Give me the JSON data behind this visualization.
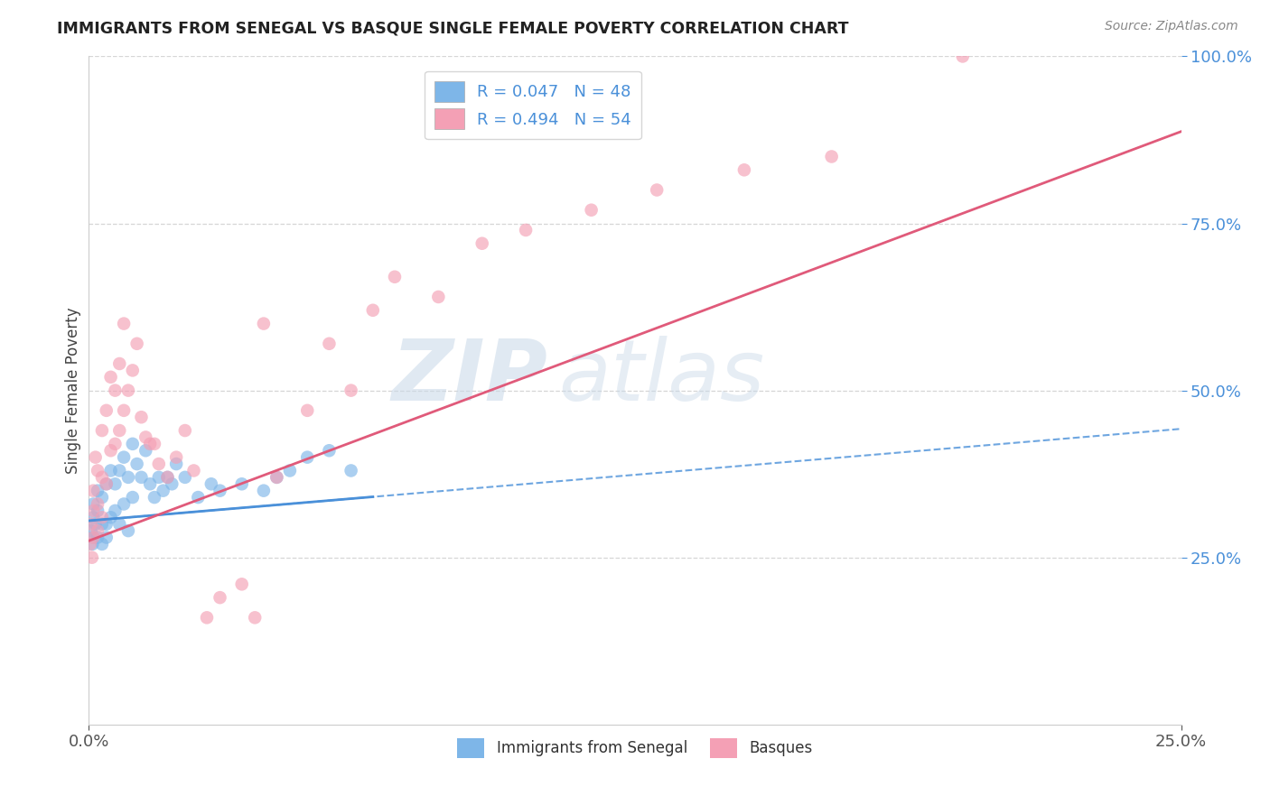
{
  "title": "IMMIGRANTS FROM SENEGAL VS BASQUE SINGLE FEMALE POVERTY CORRELATION CHART",
  "source": "Source: ZipAtlas.com",
  "ylabel": "Single Female Poverty",
  "xlabel": "",
  "xlim": [
    0.0,
    0.25
  ],
  "ylim": [
    0.0,
    1.0
  ],
  "yticks": [
    0.25,
    0.5,
    0.75,
    1.0
  ],
  "ytick_labels": [
    "25.0%",
    "50.0%",
    "75.0%",
    "100.0%"
  ],
  "xticks": [
    0.0,
    0.25
  ],
  "xtick_labels": [
    "0.0%",
    "25.0%"
  ],
  "legend_label1": "R = 0.047   N = 48",
  "legend_label2": "R = 0.494   N = 54",
  "series1_color": "#7eb6e8",
  "series2_color": "#f4a0b5",
  "trend1_color": "#4a90d9",
  "trend2_color": "#e05a7a",
  "watermark_zip": "ZIP",
  "watermark_atlas": "atlas",
  "background_color": "#ffffff",
  "grid_color": "#cccccc",
  "series1_x": [
    0.0005,
    0.0008,
    0.001,
    0.001,
    0.001,
    0.0015,
    0.002,
    0.002,
    0.002,
    0.003,
    0.003,
    0.003,
    0.004,
    0.004,
    0.004,
    0.005,
    0.005,
    0.006,
    0.006,
    0.007,
    0.007,
    0.008,
    0.008,
    0.009,
    0.009,
    0.01,
    0.01,
    0.011,
    0.012,
    0.013,
    0.014,
    0.015,
    0.016,
    0.017,
    0.018,
    0.019,
    0.02,
    0.022,
    0.025,
    0.028,
    0.03,
    0.035,
    0.04,
    0.043,
    0.046,
    0.05,
    0.055,
    0.06
  ],
  "series1_y": [
    0.29,
    0.27,
    0.33,
    0.31,
    0.28,
    0.3,
    0.32,
    0.28,
    0.35,
    0.3,
    0.34,
    0.27,
    0.36,
    0.3,
    0.28,
    0.38,
    0.31,
    0.36,
    0.32,
    0.38,
    0.3,
    0.4,
    0.33,
    0.37,
    0.29,
    0.42,
    0.34,
    0.39,
    0.37,
    0.41,
    0.36,
    0.34,
    0.37,
    0.35,
    0.37,
    0.36,
    0.39,
    0.37,
    0.34,
    0.36,
    0.35,
    0.36,
    0.35,
    0.37,
    0.38,
    0.4,
    0.41,
    0.38
  ],
  "series2_x": [
    0.0003,
    0.0005,
    0.0007,
    0.001,
    0.001,
    0.001,
    0.0015,
    0.002,
    0.002,
    0.002,
    0.003,
    0.003,
    0.003,
    0.004,
    0.004,
    0.005,
    0.005,
    0.006,
    0.006,
    0.007,
    0.007,
    0.008,
    0.008,
    0.009,
    0.01,
    0.011,
    0.012,
    0.013,
    0.014,
    0.015,
    0.016,
    0.018,
    0.02,
    0.022,
    0.024,
    0.027,
    0.03,
    0.035,
    0.038,
    0.04,
    0.043,
    0.05,
    0.055,
    0.06,
    0.065,
    0.07,
    0.08,
    0.09,
    0.1,
    0.115,
    0.13,
    0.15,
    0.17,
    0.2
  ],
  "series2_y": [
    0.27,
    0.3,
    0.25,
    0.35,
    0.28,
    0.32,
    0.4,
    0.38,
    0.33,
    0.29,
    0.44,
    0.37,
    0.31,
    0.47,
    0.36,
    0.52,
    0.41,
    0.5,
    0.42,
    0.54,
    0.44,
    0.6,
    0.47,
    0.5,
    0.53,
    0.57,
    0.46,
    0.43,
    0.42,
    0.42,
    0.39,
    0.37,
    0.4,
    0.44,
    0.38,
    0.16,
    0.19,
    0.21,
    0.16,
    0.6,
    0.37,
    0.47,
    0.57,
    0.5,
    0.62,
    0.67,
    0.64,
    0.72,
    0.74,
    0.77,
    0.8,
    0.83,
    0.85,
    1.0
  ],
  "trend1_intercept": 0.305,
  "trend1_slope": 0.55,
  "trend2_intercept": 0.275,
  "trend2_slope": 2.45
}
